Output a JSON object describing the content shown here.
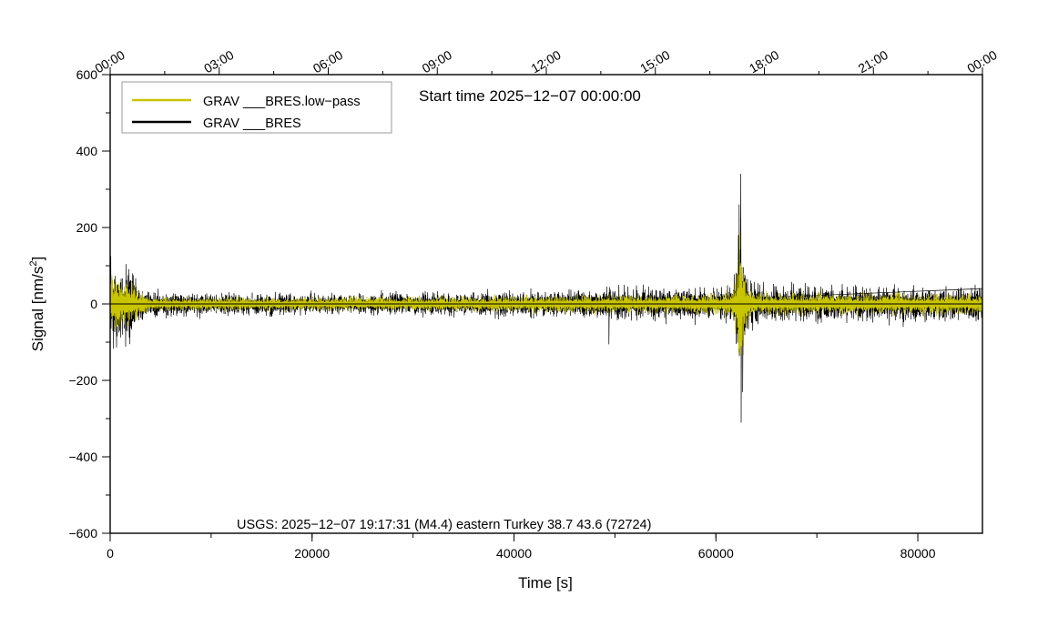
{
  "chart_data": {
    "type": "line",
    "xlabel": "Time [s]",
    "ylabel": "Signal [nm/s",
    "ylabel_sup": "2",
    "ylabel_end": "]",
    "xlim": [
      0,
      86400
    ],
    "ylim": [
      -600,
      600
    ],
    "x_ticks": [
      0,
      20000,
      40000,
      60000,
      80000
    ],
    "x_tick_labels": [
      "0",
      "20000",
      "40000",
      "60000",
      "80000"
    ],
    "x_minor_step": 10000,
    "y_ticks": [
      -600,
      -400,
      -200,
      0,
      200,
      400,
      600
    ],
    "y_tick_labels": [
      "−600",
      "−400",
      "−200",
      "0",
      "200",
      "400",
      "600"
    ],
    "y_minor_step": 100,
    "top_axis": {
      "ticks_seconds": [
        0,
        10800,
        21600,
        32400,
        43200,
        54000,
        64800,
        75600,
        86400
      ],
      "labels": [
        "00:00",
        "03:00",
        "06:00",
        "09:00",
        "12:00",
        "15:00",
        "18:00",
        "21:00",
        "00:00"
      ]
    },
    "start_time_label": "Start time 2025−12−07 00:00:00",
    "event_annotation": "USGS: 2025−12−07 19:17:31 (M4.4) eastern Turkey 38.7 43.6 (72724)",
    "grid": false,
    "legend_position": "top-left",
    "series": [
      {
        "name": "GRAV ___BRES.low−pass",
        "color": "#c8c400",
        "envelope": [
          [
            0,
            110
          ],
          [
            1000,
            95
          ],
          [
            2000,
            80
          ],
          [
            3000,
            45
          ],
          [
            4000,
            25
          ],
          [
            10000,
            22
          ],
          [
            20000,
            22
          ],
          [
            30000,
            24
          ],
          [
            40000,
            26
          ],
          [
            48000,
            30
          ],
          [
            50000,
            30
          ],
          [
            55000,
            32
          ],
          [
            60000,
            34
          ],
          [
            61500,
            40
          ],
          [
            62000,
            90
          ],
          [
            62400,
            290
          ],
          [
            62800,
            120
          ],
          [
            63300,
            60
          ],
          [
            64000,
            40
          ],
          [
            70000,
            35
          ],
          [
            80000,
            35
          ],
          [
            86400,
            35
          ]
        ]
      },
      {
        "name": "GRAV ___BRES",
        "color": "#000000",
        "envelope": [
          [
            0,
            130
          ],
          [
            1000,
            130
          ],
          [
            2000,
            120
          ],
          [
            3000,
            60
          ],
          [
            4000,
            40
          ],
          [
            10000,
            35
          ],
          [
            20000,
            32
          ],
          [
            30000,
            35
          ],
          [
            40000,
            42
          ],
          [
            48000,
            48
          ],
          [
            49500,
            60
          ],
          [
            50000,
            50
          ],
          [
            55000,
            50
          ],
          [
            60000,
            55
          ],
          [
            61500,
            60
          ],
          [
            62000,
            120
          ],
          [
            62400,
            340
          ],
          [
            62800,
            150
          ],
          [
            63300,
            80
          ],
          [
            64000,
            60
          ],
          [
            70000,
            55
          ],
          [
            80000,
            55
          ],
          [
            86400,
            55
          ]
        ],
        "spikes": [
          [
            49400,
            -105
          ],
          [
            62450,
            340
          ],
          [
            62500,
            -310
          ],
          [
            62300,
            260
          ],
          [
            62650,
            -230
          ]
        ]
      }
    ],
    "colors": {
      "lowpass": "#c8c400",
      "raw": "#000000",
      "zero_line": "#000000"
    }
  }
}
